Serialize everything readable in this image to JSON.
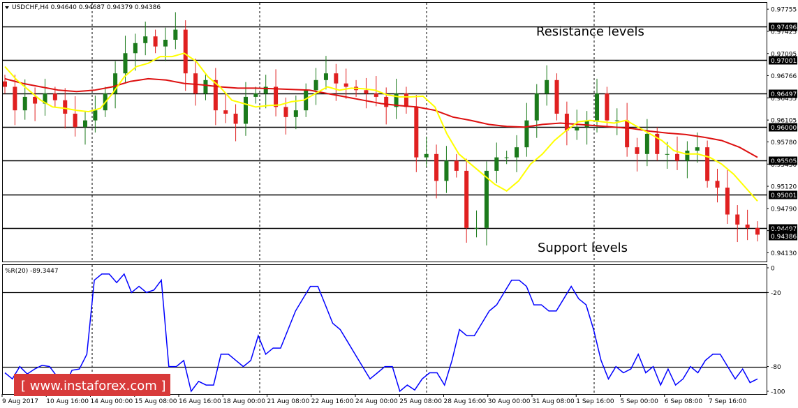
{
  "header": {
    "symbol_info": "USDCHF,H4  0.94640 0.94687 0.94379 0.94386",
    "indicator_label": "%R(20) -89.3447"
  },
  "annotations": {
    "resistance": "Resistance levels",
    "support": "Support levels"
  },
  "watermark": {
    "text": "[ www.instaforex.com ]",
    "bg": "#d83a3a"
  },
  "colors": {
    "bull": "#1b7a1b",
    "bear": "#e02020",
    "ma_fast": "#ffff00",
    "ma_slow": "#dd1010",
    "wpr": "#0000ff",
    "level_line": "#000000"
  },
  "chart_data": [
    {
      "type": "candlestick",
      "symbol": "USDCHF",
      "timeframe": "H4",
      "ohlc_current": {
        "open": 0.9464,
        "high": 0.94687,
        "low": 0.94379,
        "close": 0.94386
      },
      "ylim": [
        0.94,
        0.9785
      ],
      "y_ticks": [
        "0.97755",
        "0.97425",
        "0.97095",
        "0.96766",
        "0.96435",
        "0.96105",
        "0.95780",
        "0.95450",
        "0.95120",
        "0.94790",
        "0.94460",
        "0.94130"
      ],
      "x_ticks": [
        "9 Aug 2017",
        "10 Aug 16:00",
        "14 Aug 00:00",
        "15 Aug 08:00",
        "16 Aug 16:00",
        "18 Aug 00:00",
        "21 Aug 08:00",
        "22 Aug 16:00",
        "24 Aug 00:00",
        "25 Aug 08:00",
        "28 Aug 16:00",
        "30 Aug 00:00",
        "31 Aug 08:00",
        "1 Sep 16:00",
        "5 Sep 00:00",
        "6 Sep 08:00",
        "7 Sep 16:00"
      ],
      "horizontal_levels": [
        "0.97496",
        "0.97001",
        "0.96497",
        "0.96000",
        "0.95505",
        "0.95001",
        "0.94497"
      ],
      "current_price_label": "0.94386",
      "closes": [
        0.966,
        0.9625,
        0.9645,
        0.9635,
        0.965,
        0.964,
        0.962,
        0.96,
        0.961,
        0.9625,
        0.965,
        0.968,
        0.971,
        0.9725,
        0.9735,
        0.972,
        0.973,
        0.9745,
        0.968,
        0.965,
        0.967,
        0.9625,
        0.962,
        0.9605,
        0.9645,
        0.965,
        0.966,
        0.963,
        0.9615,
        0.9625,
        0.9655,
        0.967,
        0.968,
        0.9665,
        0.966,
        0.9655,
        0.965,
        0.9645,
        0.963,
        0.965,
        0.963,
        0.9555,
        0.956,
        0.952,
        0.955,
        0.9535,
        0.945,
        0.945,
        0.9535,
        0.9555,
        0.9555,
        0.957,
        0.961,
        0.965,
        0.967,
        0.962,
        0.9595,
        0.96,
        0.961,
        0.965,
        0.961,
        0.961,
        0.957,
        0.956,
        0.959,
        0.956,
        0.956,
        0.955,
        0.9565,
        0.957,
        0.952,
        0.951,
        0.947,
        0.9455,
        0.945,
        0.944
      ],
      "series": [
        {
          "name": "MA fast",
          "values": [
            0.969,
            0.967,
            0.9655,
            0.964,
            0.963,
            0.9628,
            0.9625,
            0.9623,
            0.9628,
            0.965,
            0.9675,
            0.969,
            0.9695,
            0.9705,
            0.9705,
            0.971,
            0.9698,
            0.9675,
            0.966,
            0.964,
            0.9635,
            0.963,
            0.9632,
            0.9633,
            0.9638,
            0.964,
            0.965,
            0.966,
            0.9655,
            0.9658,
            0.9657,
            0.9655,
            0.9648,
            0.9645,
            0.9645,
            0.9646,
            0.963,
            0.959,
            0.956,
            0.9545,
            0.953,
            0.9515,
            0.9505,
            0.952,
            0.9545,
            0.956,
            0.958,
            0.9595,
            0.9608,
            0.961,
            0.9608,
            0.9606,
            0.961,
            0.96,
            0.959,
            0.958,
            0.9565,
            0.956,
            0.956,
            0.9555,
            0.9545,
            0.953,
            0.951,
            0.949
          ]
        },
        {
          "name": "MA slow",
          "values": [
            0.9672,
            0.9665,
            0.966,
            0.9655,
            0.9653,
            0.9655,
            0.966,
            0.9668,
            0.9672,
            0.967,
            0.9665,
            0.9663,
            0.966,
            0.9658,
            0.9658,
            0.9657,
            0.9656,
            0.9655,
            0.965,
            0.9645,
            0.964,
            0.9635,
            0.9632,
            0.963,
            0.9625,
            0.9615,
            0.961,
            0.9604,
            0.9601,
            0.96,
            0.9604,
            0.9606,
            0.9604,
            0.9602,
            0.96,
            0.9598,
            0.9594,
            0.9591,
            0.9589,
            0.9585,
            0.958,
            0.957,
            0.9555
          ]
        }
      ]
    },
    {
      "type": "line",
      "name": "%R(20)",
      "ylim": [
        -100,
        0
      ],
      "y_ticks": [
        "0",
        "-20",
        "-80",
        "-100"
      ],
      "values": [
        -85,
        -90,
        -80,
        -86,
        -82,
        -79,
        -80,
        -88,
        -96,
        -83,
        -82,
        -70,
        -10,
        -5,
        -5,
        -12,
        -5,
        -20,
        -15,
        -20,
        -18,
        -10,
        -80,
        -80,
        -75,
        -100,
        -92,
        -95,
        -95,
        -70,
        -70,
        -75,
        -80,
        -75,
        -55,
        -70,
        -65,
        -65,
        -50,
        -35,
        -25,
        -15,
        -15,
        -30,
        -45,
        -50,
        -60,
        -70,
        -80,
        -90,
        -85,
        -80,
        -80,
        -100,
        -95,
        -99,
        -90,
        -85,
        -85,
        -95,
        -75,
        -50,
        -55,
        -55,
        -45,
        -35,
        -30,
        -20,
        -10,
        -10,
        -15,
        -30,
        -30,
        -35,
        -35,
        -25,
        -15,
        -25,
        -30,
        -50,
        -75,
        -90,
        -80,
        -85,
        -82,
        -70,
        -85,
        -80,
        -95,
        -82,
        -95,
        -90,
        -80,
        -85,
        -75,
        -70,
        -70,
        -80,
        -90,
        -82,
        -93,
        -90
      ]
    }
  ]
}
